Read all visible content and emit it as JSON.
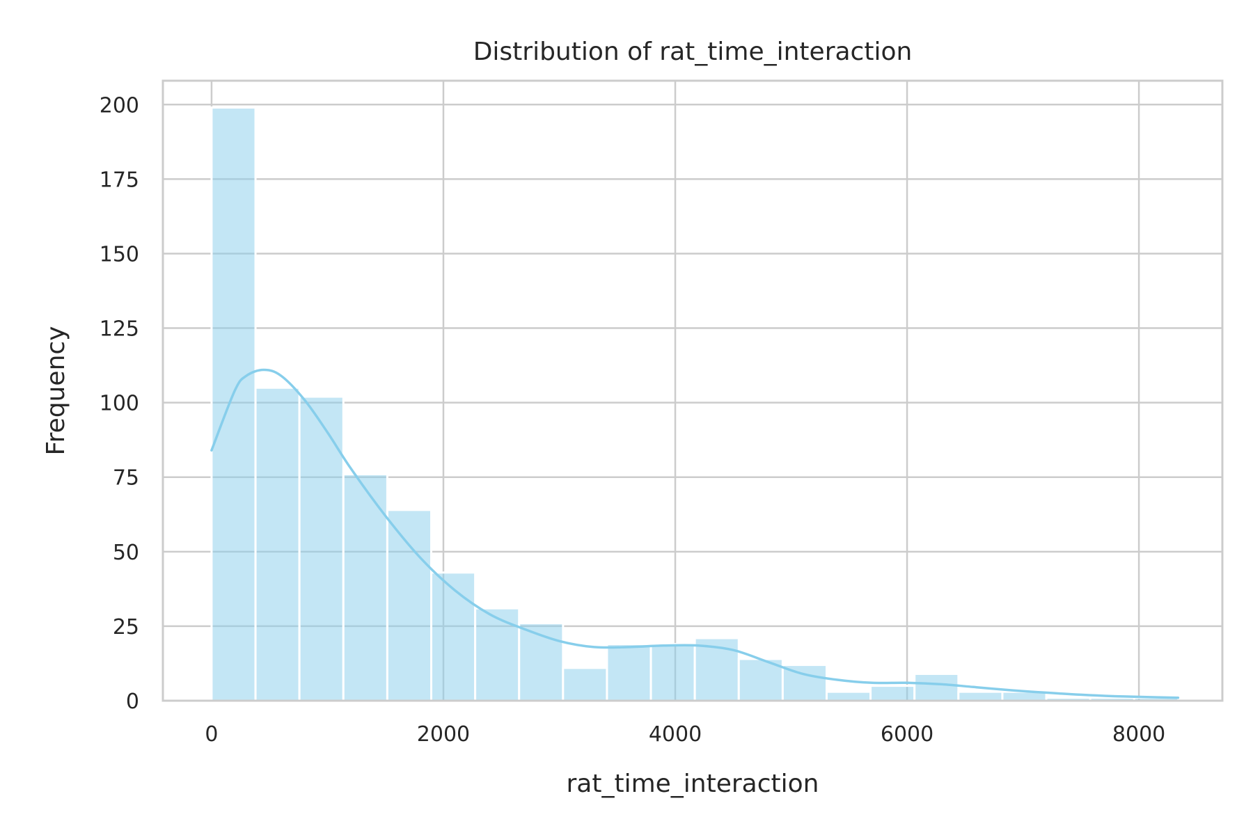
{
  "chart_data": {
    "type": "bar",
    "title": "Distribution of rat_time_interaction",
    "xlabel": "rat_time_interaction",
    "ylabel": "Frequency",
    "xlim": [
      -420,
      8720
    ],
    "ylim": [
      0,
      208
    ],
    "xticks": [
      0,
      2000,
      4000,
      6000,
      8000
    ],
    "yticks": [
      0,
      25,
      50,
      75,
      100,
      125,
      150,
      175,
      200
    ],
    "grid": true,
    "bin_edges": [
      0,
      379,
      758,
      1137,
      1516,
      1895,
      2274,
      2653,
      3032,
      3411,
      3790,
      4169,
      4548,
      4927,
      5306,
      5685,
      6064,
      6443,
      6822,
      7201,
      7580,
      7959,
      8338
    ],
    "counts": [
      199,
      105,
      102,
      76,
      64,
      43,
      31,
      26,
      11,
      19,
      19,
      21,
      14,
      12,
      3,
      5,
      9,
      3,
      3,
      1,
      1,
      1
    ],
    "kde": {
      "x": [
        0,
        200,
        300,
        450,
        600,
        800,
        1000,
        1200,
        1500,
        1800,
        2100,
        2400,
        2700,
        3000,
        3300,
        3600,
        3900,
        4200,
        4500,
        4800,
        5100,
        5400,
        5700,
        6000,
        6300,
        6600,
        6900,
        7200,
        7500,
        7800,
        8100,
        8338
      ],
      "y": [
        84,
        104,
        109,
        111,
        109,
        101,
        90,
        78,
        62,
        48,
        37,
        29,
        24,
        20,
        18,
        18,
        18.5,
        18.5,
        17,
        13,
        9,
        7,
        6,
        6,
        5.5,
        4.5,
        3.5,
        2.7,
        2,
        1.5,
        1.2,
        1
      ],
      "color": "#87ceeb"
    },
    "bar_color": "#87ceeb",
    "bar_opacity": 0.5
  }
}
